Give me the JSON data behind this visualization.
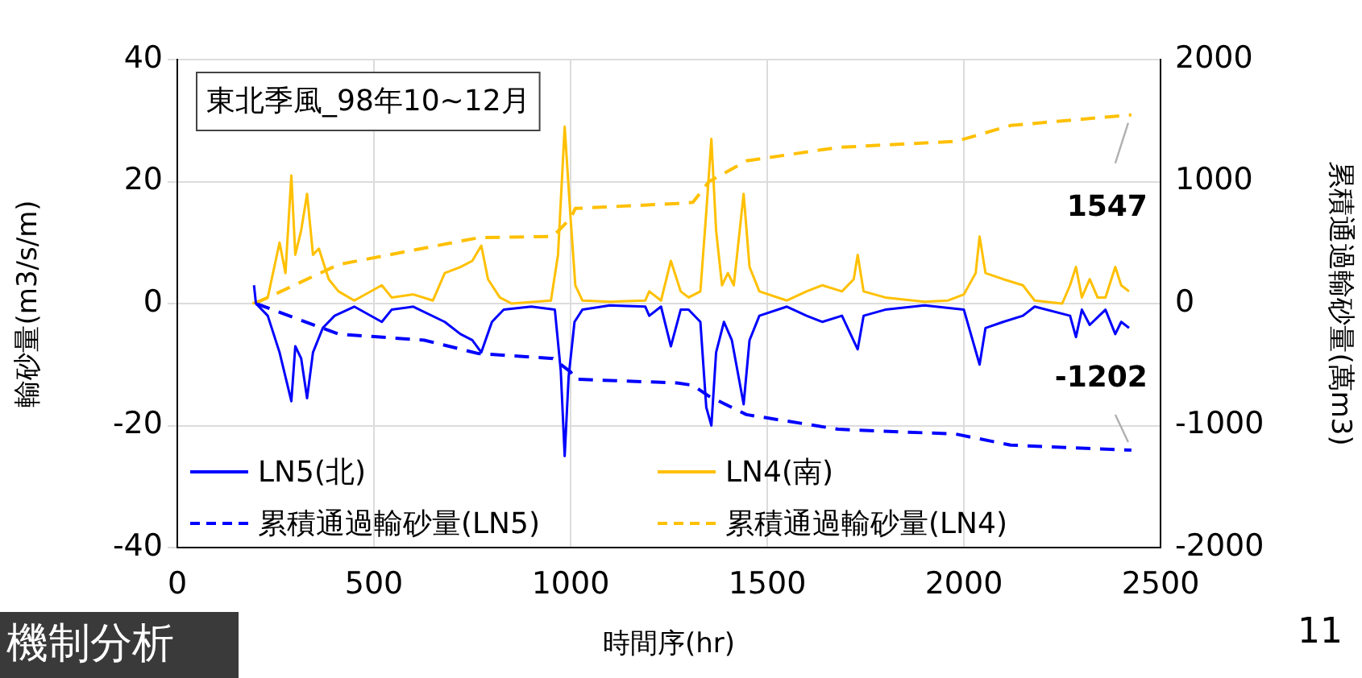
{
  "chart_data": {
    "type": "line",
    "xlabel": "時間序(hr)",
    "ylabel": "輸砂量(m3/s/m)",
    "y2label": "累積通過輸砂量(萬m3)",
    "xlim": [
      0,
      2500
    ],
    "xticks": [
      0,
      500,
      1000,
      1500,
      2000,
      2500
    ],
    "ylim": [
      -40,
      40
    ],
    "yticks": [
      -40,
      -20,
      0,
      20,
      40
    ],
    "y2lim": [
      -2000,
      2000
    ],
    "y2ticks": [
      -2000,
      -1000,
      0,
      1000,
      2000
    ],
    "grid": true,
    "legend": "bottom left",
    "marker": "none",
    "annotations": [
      "東北季風_98年10~12月",
      "機制分析",
      "11"
    ],
    "series": [
      {
        "name": "LN5(北)",
        "color": "#0000ff",
        "line_style": "solid",
        "x": [
          195,
          200,
          230,
          260,
          290,
          300,
          315,
          330,
          345,
          370,
          400,
          450,
          520,
          545,
          600,
          680,
          720,
          750,
          773,
          800,
          830,
          900,
          960,
          975,
          985,
          995,
          1010,
          1030,
          1100,
          1190,
          1200,
          1230,
          1255,
          1280,
          1300,
          1330,
          1345,
          1358,
          1370,
          1390,
          1410,
          1440,
          1455,
          1480,
          1550,
          1600,
          1640,
          1690,
          1730,
          1745,
          1800,
          1900,
          2000,
          2040,
          2055,
          2100,
          2150,
          2180,
          2270,
          2285,
          2300,
          2320,
          2360,
          2385,
          2400,
          2420
        ],
        "values": [
          3,
          0,
          -2,
          -8,
          -16,
          -7,
          -9,
          -15.5,
          -8,
          -4,
          -2,
          -0.5,
          -3,
          -1,
          -0.5,
          -3,
          -5,
          -6,
          -8,
          -3,
          -1,
          -0.5,
          -1,
          -11,
          -25,
          -12,
          -3,
          -1,
          -0.3,
          -0.5,
          -2,
          -0.5,
          -7,
          -1,
          -1,
          -3,
          -17,
          -20,
          -8,
          -3,
          -6,
          -16.5,
          -6,
          -2,
          -0.5,
          -2,
          -3,
          -2,
          -7.5,
          -2,
          -1,
          -0.3,
          -1,
          -10,
          -4,
          -3,
          -2,
          -0.5,
          -2,
          -5.5,
          -1,
          -3.5,
          -1,
          -5,
          -3,
          -4
        ]
      },
      {
        "name": "LN4(南)",
        "color": "#ffc000",
        "line_style": "solid",
        "x": [
          191,
          230,
          260,
          275,
          290,
          300,
          315,
          330,
          345,
          360,
          385,
          410,
          450,
          520,
          545,
          600,
          650,
          680,
          720,
          750,
          773,
          790,
          820,
          850,
          950,
          968,
          985,
          1000,
          1012,
          1030,
          1100,
          1190,
          1200,
          1230,
          1255,
          1280,
          1300,
          1330,
          1345,
          1358,
          1370,
          1385,
          1400,
          1415,
          1440,
          1455,
          1480,
          1550,
          1600,
          1640,
          1690,
          1720,
          1730,
          1745,
          1800,
          1900,
          1960,
          2000,
          2030,
          2040,
          2055,
          2100,
          2150,
          2180,
          2250,
          2270,
          2285,
          2300,
          2320,
          2340,
          2360,
          2385,
          2400,
          2420
        ],
        "values": [
          0,
          1,
          10,
          5,
          21,
          8,
          12,
          18,
          8,
          9,
          4,
          2,
          0.5,
          3,
          1,
          1.5,
          0.5,
          5,
          6,
          7,
          9.5,
          4,
          1,
          0,
          0.5,
          8,
          29,
          14,
          3,
          0.5,
          0.3,
          0.5,
          2,
          0.5,
          7,
          2,
          1,
          2,
          15,
          27,
          12,
          3,
          5,
          3,
          18,
          6,
          2,
          0.5,
          2,
          3,
          2,
          4,
          8,
          2,
          1,
          0.3,
          0.5,
          1.5,
          5,
          11,
          5,
          4,
          3,
          0.5,
          0,
          3,
          6,
          1,
          4,
          1,
          1,
          6,
          3,
          2
        ]
      },
      {
        "name": "累積通過輸砂量(LN5)",
        "color": "#0000ff",
        "line_style": "dashed",
        "axis": "y2",
        "x": [
          200,
          410,
          628,
          766,
          955,
          1000,
          1012,
          1270,
          1311,
          1352,
          1447,
          1680,
          1980,
          2119,
          2426
        ],
        "values": [
          0,
          -250,
          -300,
          -410,
          -450,
          -560,
          -620,
          -650,
          -670,
          -760,
          -910,
          -1030,
          -1070,
          -1160,
          -1202
        ],
        "value_labels": [
          null,
          null,
          null,
          null,
          null,
          null,
          null,
          null,
          null,
          null,
          null,
          null,
          null,
          null,
          "-1202"
        ]
      },
      {
        "name": "累積通過輸砂量(LN4)",
        "color": "#ffc000",
        "line_style": "dashed",
        "axis": "y2",
        "x": [
          197,
          410,
          766,
          955,
          1000,
          1012,
          1270,
          1311,
          1352,
          1447,
          1680,
          1980,
          2119,
          2365,
          2426
        ],
        "values": [
          0,
          320,
          540,
          550,
          700,
          780,
          820,
          830,
          1000,
          1170,
          1280,
          1330,
          1460,
          1530,
          1547
        ],
        "value_labels": [
          null,
          null,
          null,
          null,
          null,
          null,
          null,
          null,
          null,
          null,
          null,
          null,
          null,
          null,
          "1547"
        ]
      }
    ]
  }
}
